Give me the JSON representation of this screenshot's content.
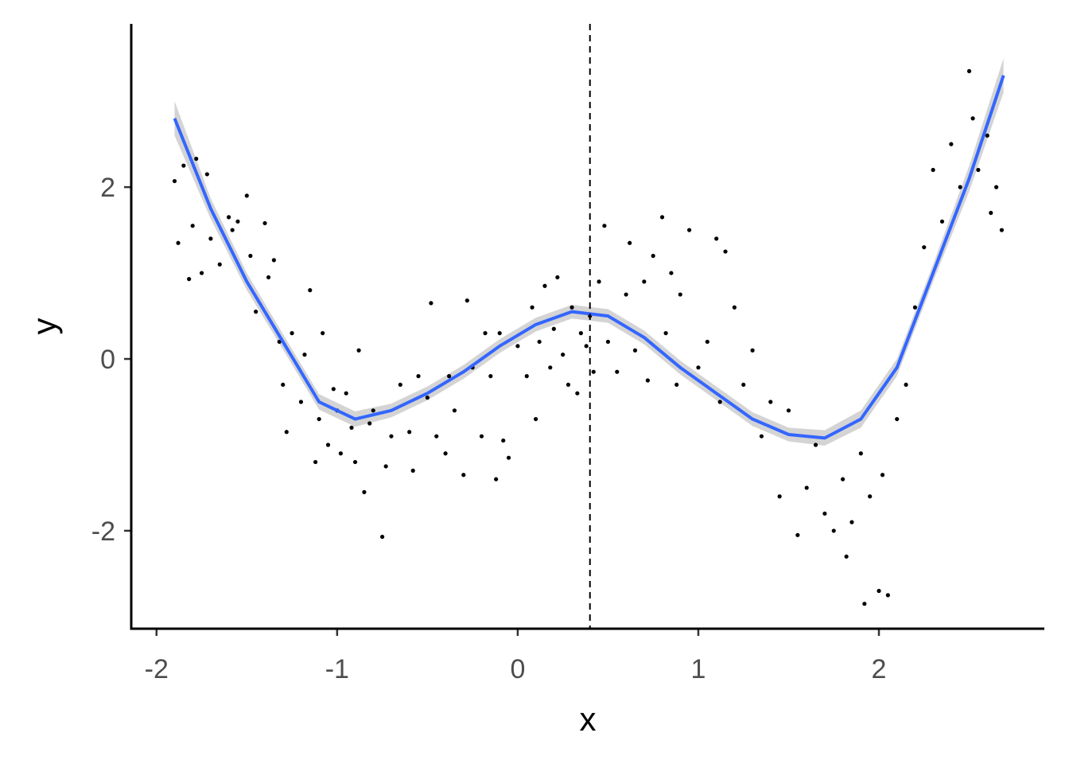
{
  "chart_data": {
    "type": "scatter",
    "x_label": "x",
    "y_label": "y",
    "xlim": [
      -2.14,
      2.916
    ],
    "ylim": [
      -3.14,
      3.9
    ],
    "xticks": [
      -2,
      -1,
      0,
      1,
      2
    ],
    "yticks": [
      -2,
      0,
      2
    ],
    "grid": false,
    "series": [
      {
        "color": "#000000",
        "x": [
          -1.9,
          -1.88,
          -1.85,
          -1.82,
          -1.8,
          -1.78,
          -1.75,
          -1.72,
          -1.7,
          -1.65,
          -1.6,
          -1.58,
          -1.55,
          -1.5,
          -1.48,
          -1.45,
          -1.4,
          -1.38,
          -1.35,
          -1.32,
          -1.3,
          -1.28,
          -1.25,
          -1.2,
          -1.18,
          -1.15,
          -1.12,
          -1.1,
          -1.08,
          -1.05,
          -1.02,
          -1.0,
          -0.98,
          -0.95,
          -0.92,
          -0.9,
          -0.88,
          -0.85,
          -0.82,
          -0.8,
          -0.75,
          -0.73,
          -0.7,
          -0.65,
          -0.6,
          -0.58,
          -0.55,
          -0.5,
          -0.48,
          -0.45,
          -0.4,
          -0.38,
          -0.35,
          -0.3,
          -0.28,
          -0.25,
          -0.2,
          -0.18,
          -0.15,
          -0.12,
          -0.1,
          -0.08,
          -0.05,
          0.0,
          0.05,
          0.08,
          0.1,
          0.12,
          0.15,
          0.18,
          0.2,
          0.22,
          0.25,
          0.28,
          0.3,
          0.33,
          0.35,
          0.38,
          0.4,
          0.42,
          0.45,
          0.48,
          0.5,
          0.55,
          0.6,
          0.62,
          0.65,
          0.7,
          0.72,
          0.75,
          0.8,
          0.82,
          0.85,
          0.88,
          0.9,
          0.95,
          1.0,
          1.05,
          1.1,
          1.12,
          1.15,
          1.2,
          1.25,
          1.3,
          1.35,
          1.4,
          1.45,
          1.5,
          1.55,
          1.6,
          1.65,
          1.7,
          1.75,
          1.8,
          1.82,
          1.85,
          1.9,
          1.92,
          1.95,
          2.0,
          2.02,
          2.05,
          2.1,
          2.15,
          2.2,
          2.25,
          2.3,
          2.35,
          2.4,
          2.45,
          2.5,
          2.52,
          2.55,
          2.6,
          2.62,
          2.65,
          2.68
        ],
        "values": [
          2.07,
          1.35,
          2.25,
          0.93,
          1.55,
          2.33,
          1.0,
          2.15,
          1.4,
          1.1,
          1.65,
          1.5,
          1.6,
          1.9,
          1.2,
          0.55,
          1.58,
          0.95,
          1.15,
          0.2,
          -0.3,
          -0.85,
          0.3,
          -0.5,
          0.05,
          0.8,
          -1.2,
          -0.7,
          0.3,
          -1.0,
          -0.35,
          -0.6,
          -1.1,
          -0.4,
          -0.8,
          -1.2,
          0.1,
          -1.55,
          -0.75,
          -0.6,
          -2.07,
          -1.25,
          -0.9,
          -0.3,
          -0.85,
          -1.3,
          -0.2,
          -0.45,
          0.65,
          -0.9,
          -1.1,
          -0.2,
          -0.6,
          -1.35,
          0.68,
          -0.1,
          -0.9,
          0.3,
          -0.2,
          -1.4,
          0.3,
          -0.95,
          -1.15,
          0.15,
          -0.2,
          0.6,
          -0.7,
          0.2,
          0.85,
          -0.1,
          0.35,
          0.95,
          0.05,
          -0.3,
          0.6,
          -0.4,
          0.3,
          0.15,
          0.5,
          -0.15,
          0.9,
          1.55,
          0.2,
          -0.15,
          0.75,
          1.35,
          0.1,
          0.9,
          -0.25,
          1.2,
          1.65,
          0.3,
          1.0,
          -0.3,
          0.75,
          1.5,
          -0.1,
          0.2,
          1.4,
          -0.5,
          1.25,
          0.6,
          -0.3,
          0.1,
          -0.9,
          -0.5,
          -1.6,
          -0.6,
          -2.05,
          -1.5,
          -1.0,
          -1.8,
          -2.0,
          -1.4,
          -2.3,
          -1.9,
          -1.1,
          -2.85,
          -1.6,
          -2.7,
          -1.35,
          -2.75,
          -0.7,
          -0.3,
          0.6,
          1.3,
          2.2,
          1.6,
          2.5,
          2.0,
          3.35,
          2.8,
          2.2,
          2.6,
          1.7,
          2.0,
          1.5
        ]
      }
    ],
    "smooth": {
      "color": "#3366FF",
      "band_color": "#cccccc",
      "x": [
        -1.9,
        -1.7,
        -1.5,
        -1.3,
        -1.1,
        -0.9,
        -0.7,
        -0.5,
        -0.3,
        -0.1,
        0.1,
        0.3,
        0.5,
        0.7,
        0.9,
        1.1,
        1.3,
        1.5,
        1.7,
        1.9,
        2.1,
        2.3,
        2.5,
        2.69
      ],
      "values": [
        2.8,
        1.75,
        0.9,
        0.2,
        -0.5,
        -0.7,
        -0.6,
        -0.4,
        -0.15,
        0.15,
        0.4,
        0.55,
        0.5,
        0.25,
        -0.1,
        -0.4,
        -0.7,
        -0.88,
        -0.92,
        -0.7,
        -0.1,
        1.0,
        2.1,
        3.3
      ],
      "lower": [
        2.6,
        1.63,
        0.8,
        0.11,
        -0.59,
        -0.79,
        -0.68,
        -0.48,
        -0.23,
        0.07,
        0.32,
        0.47,
        0.42,
        0.17,
        -0.18,
        -0.48,
        -0.78,
        -0.96,
        -1.01,
        -0.8,
        -0.2,
        0.9,
        1.95,
        3.1
      ],
      "upper": [
        3.0,
        1.87,
        1.0,
        0.29,
        -0.41,
        -0.61,
        -0.52,
        -0.32,
        -0.07,
        0.23,
        0.48,
        0.63,
        0.58,
        0.33,
        -0.02,
        -0.32,
        -0.62,
        -0.8,
        -0.83,
        -0.6,
        0.0,
        1.1,
        2.25,
        3.5
      ]
    },
    "vline": 0.4
  }
}
